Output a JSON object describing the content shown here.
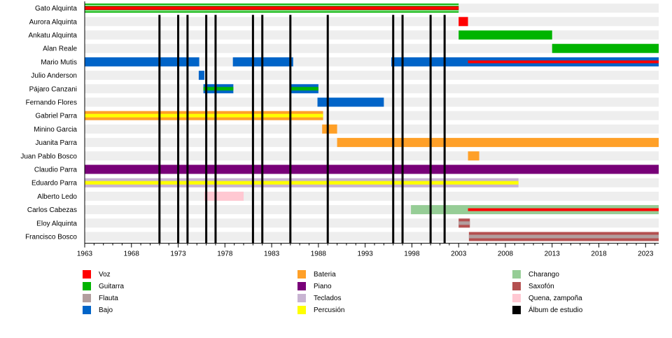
{
  "chart_data": {
    "type": "timeline",
    "title": "",
    "xlabel": "",
    "ylabel": "",
    "xlim": [
      1963,
      2024.4
    ],
    "xticks": [
      1963,
      1968,
      1973,
      1978,
      1983,
      1988,
      1993,
      1998,
      2003,
      2008,
      2013,
      2018,
      2023
    ],
    "instruments": {
      "voz": {
        "label": "Voz",
        "color": "#ff0000"
      },
      "guitarra": {
        "label": "Guitarra",
        "color": "#00b400"
      },
      "flauta": {
        "label": "Flauta",
        "color": "#b29e9e"
      },
      "bajo": {
        "label": "Bajo",
        "color": "#0064c8"
      },
      "bateria": {
        "label": "Bateria",
        "color": "#ffa028"
      },
      "piano": {
        "label": "Piano",
        "color": "#780078"
      },
      "teclados": {
        "label": "Teclados",
        "color": "#c8b4d2"
      },
      "percusion": {
        "label": "Percusión",
        "color": "#ffff00"
      },
      "charango": {
        "label": "Charango",
        "color": "#96cd96"
      },
      "saxofon": {
        "label": "Saxofón",
        "color": "#b45050"
      },
      "quena": {
        "label": "Quena, zampoña",
        "color": "#ffc8d2"
      },
      "album": {
        "label": "Álbum de estudio",
        "color": "#000000"
      }
    },
    "legend": [
      [
        "voz",
        "guitarra",
        "flauta",
        "bajo"
      ],
      [
        "bateria",
        "piano",
        "teclados",
        "percusion"
      ],
      [
        "charango",
        "saxofon",
        "quena",
        "album"
      ]
    ],
    "members": [
      {
        "name": "Gato Alquinta",
        "bars": [
          {
            "from": 1963,
            "to": 2003,
            "inst": "guitarra",
            "stripe": "voz"
          }
        ]
      },
      {
        "name": "Aurora Alquinta",
        "bars": [
          {
            "from": 2003,
            "to": 2004,
            "inst": "voz"
          }
        ]
      },
      {
        "name": "Ankatu Alquinta",
        "bars": [
          {
            "from": 2003,
            "to": 2013,
            "inst": "guitarra"
          }
        ]
      },
      {
        "name": "Alan Reale",
        "bars": [
          {
            "from": 2013,
            "to": 2024.4,
            "inst": "guitarra"
          }
        ]
      },
      {
        "name": "Mario Mutis",
        "bars": [
          {
            "from": 1963,
            "to": 1975.25,
            "inst": "bajo"
          },
          {
            "from": 1978.85,
            "to": 1985.3,
            "inst": "bajo"
          },
          {
            "from": 1995.8,
            "to": 2024.4,
            "inst": "bajo"
          },
          {
            "from": 2004,
            "to": 2024.4,
            "inst": "voz",
            "thin": true
          }
        ]
      },
      {
        "name": "Julio Anderson",
        "bars": [
          {
            "from": 1975.2,
            "to": 1975.8,
            "inst": "bajo"
          }
        ]
      },
      {
        "name": "Pájaro Canzani",
        "bars": [
          {
            "from": 1975.7,
            "to": 1978.9,
            "inst": "bajo",
            "stripe": "guitarra"
          },
          {
            "from": 1985,
            "to": 1988,
            "inst": "bajo",
            "stripe": "guitarra"
          }
        ]
      },
      {
        "name": "Fernando Flores",
        "bars": [
          {
            "from": 1987.9,
            "to": 1995,
            "inst": "bajo"
          }
        ]
      },
      {
        "name": "Gabriel Parra",
        "bars": [
          {
            "from": 1963,
            "to": 1988.5,
            "inst": "bateria",
            "stripe": "percusion"
          }
        ]
      },
      {
        "name": "Minino Garcia",
        "bars": [
          {
            "from": 1988.4,
            "to": 1990,
            "inst": "bateria"
          }
        ]
      },
      {
        "name": "Juanita Parra",
        "bars": [
          {
            "from": 1990,
            "to": 2024.4,
            "inst": "bateria"
          }
        ]
      },
      {
        "name": "Juan Pablo Bosco",
        "bars": [
          {
            "from": 2004,
            "to": 2005.2,
            "inst": "bateria"
          }
        ]
      },
      {
        "name": "Claudio Parra",
        "bars": [
          {
            "from": 1963,
            "to": 2024.4,
            "inst": "piano"
          }
        ]
      },
      {
        "name": "Eduardo Parra",
        "bars": [
          {
            "from": 1963,
            "to": 2009.4,
            "inst": "teclados",
            "stripe": "percusion"
          }
        ]
      },
      {
        "name": "Alberto Ledo",
        "bars": [
          {
            "from": 1975.8,
            "to": 1980,
            "inst": "quena"
          }
        ]
      },
      {
        "name": "Carlos Cabezas",
        "bars": [
          {
            "from": 1997.9,
            "to": 2024.4,
            "inst": "charango"
          },
          {
            "from": 2004,
            "to": 2024.4,
            "inst": "voz",
            "thin": true
          }
        ]
      },
      {
        "name": "Eloy Alquinta",
        "bars": [
          {
            "from": 2003,
            "to": 2004.2,
            "inst": "saxofon",
            "stripe": "flauta"
          }
        ]
      },
      {
        "name": "Francisco Bosco",
        "bars": [
          {
            "from": 2004.1,
            "to": 2024.4,
            "inst": "saxofon",
            "stripe": "flauta"
          }
        ]
      }
    ],
    "albums": [
      1971,
      1973,
      1974,
      1976,
      1977,
      1981,
      1982,
      1985,
      1989,
      1996,
      1997,
      2000,
      2001.5
    ]
  }
}
